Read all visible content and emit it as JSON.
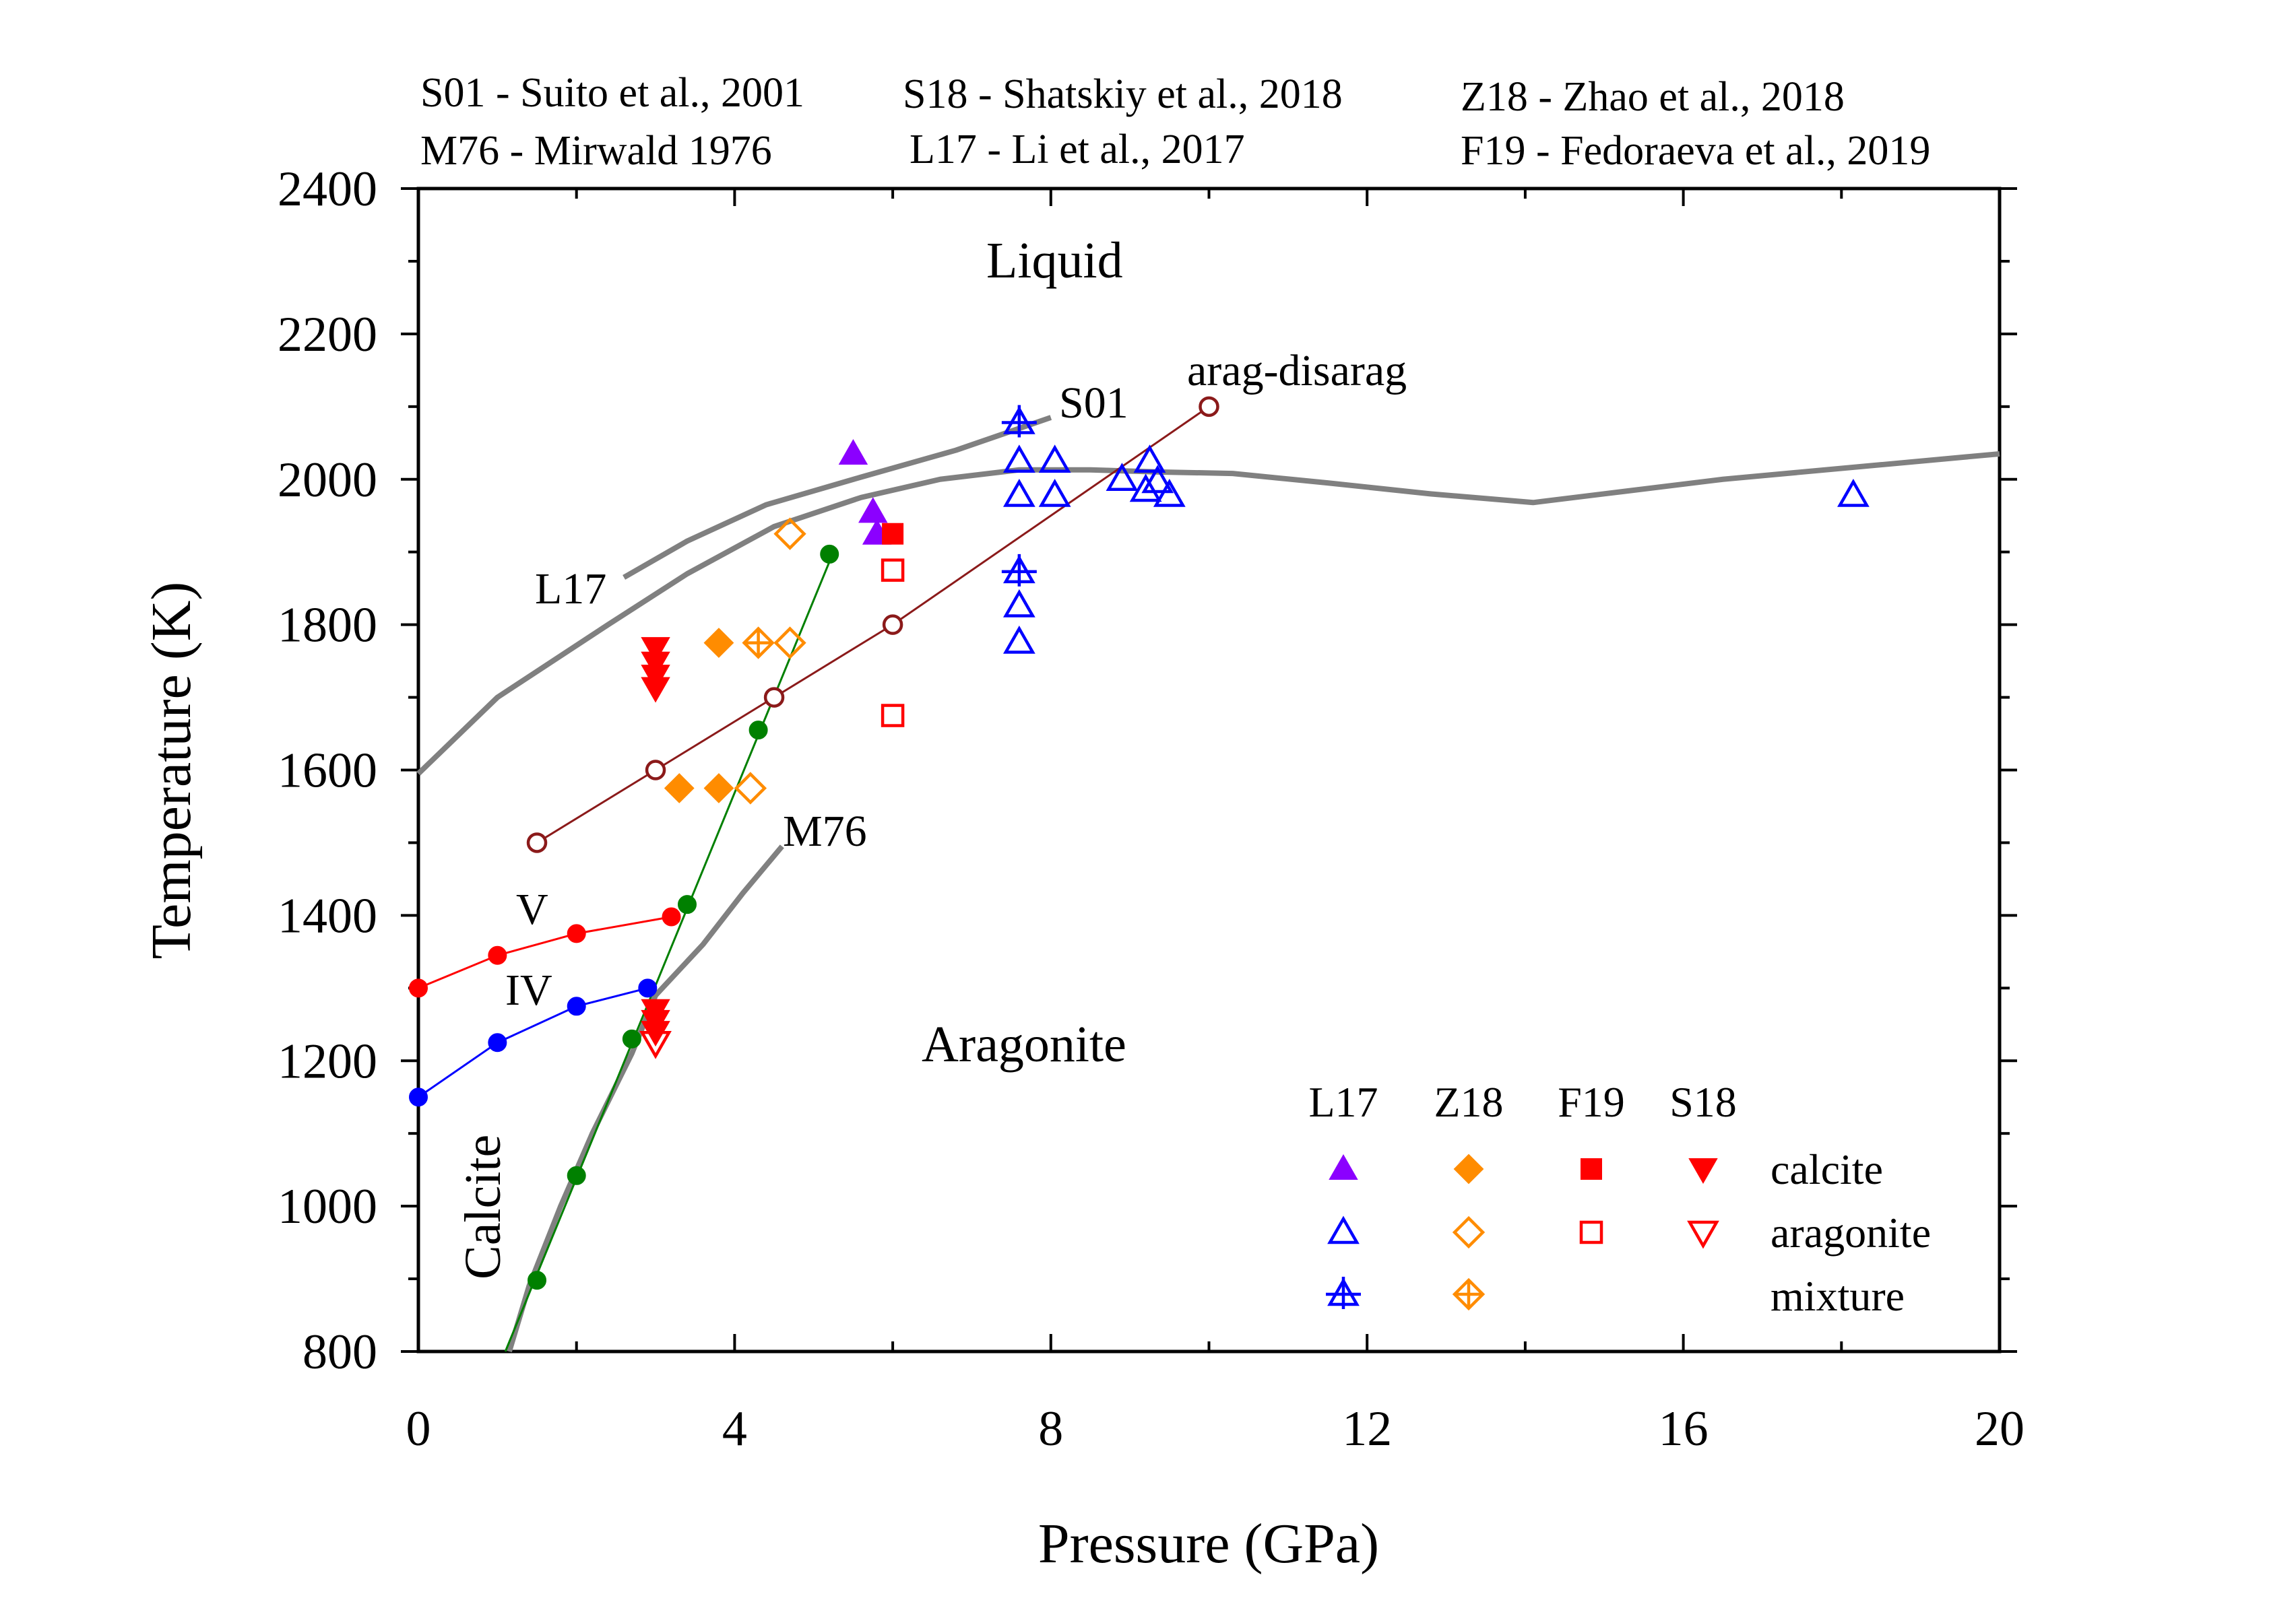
{
  "chart_data": {
    "type": "scatter",
    "xlabel": "Pressure (GPa)",
    "ylabel": "Temperature (K)",
    "xlim": [
      0,
      20
    ],
    "ylim": [
      800,
      2400
    ],
    "xticks": [
      "0",
      "4",
      "8",
      "12",
      "16",
      "20"
    ],
    "yticks": [
      "800",
      "1000",
      "1200",
      "1400",
      "1600",
      "1800",
      "2000",
      "2200",
      "2400"
    ],
    "grid": false,
    "references": [
      "S01 - Suito et al., 2001",
      "S18 - Shatskiy et al., 2018",
      "Z18 - Zhao et al., 2018",
      "M76 - Mirwald 1976",
      "L17 - Li et al., 2017",
      "F19 - Fedoraeva et al., 2019"
    ],
    "region_labels": {
      "liquid": "Liquid",
      "aragonite": "Aragonite",
      "calcite": "Calcite"
    },
    "curve_labels": {
      "s01": "S01",
      "arag_disarag": "arag-disarag",
      "l17": "L17",
      "m76": "M76",
      "v": "V",
      "iv": "IV"
    },
    "curves": [
      {
        "id": "melting-curve",
        "color": "#808080",
        "points": [
          [
            0,
            1595
          ],
          [
            1,
            1700
          ],
          [
            2.4,
            1800
          ],
          [
            3.4,
            1870
          ],
          [
            4.5,
            1935
          ],
          [
            5.6,
            1975
          ],
          [
            6.6,
            2000
          ],
          [
            7.6,
            2013
          ],
          [
            8.5,
            2013
          ],
          [
            9.4,
            2010
          ],
          [
            10.3,
            2008
          ],
          [
            11.5,
            1995
          ],
          [
            12.8,
            1980
          ],
          [
            14.1,
            1968
          ],
          [
            15,
            1980
          ],
          [
            16.5,
            2000
          ],
          [
            18.5,
            2020
          ],
          [
            20,
            2035
          ]
        ]
      },
      {
        "id": "s01-curve",
        "color": "#808080",
        "points": [
          [
            2.6,
            1865
          ],
          [
            3.4,
            1915
          ],
          [
            4.4,
            1965
          ],
          [
            5.6,
            2003
          ],
          [
            6.8,
            2040
          ],
          [
            8.0,
            2085
          ]
        ]
      },
      {
        "id": "m76-curve",
        "color": "#808080",
        "points": [
          [
            1.15,
            800
          ],
          [
            1.4,
            890
          ],
          [
            1.8,
            1000
          ],
          [
            2.2,
            1100
          ],
          [
            2.7,
            1210
          ],
          [
            3.0,
            1290
          ],
          [
            3.6,
            1360
          ],
          [
            4.1,
            1430
          ],
          [
            4.6,
            1495
          ]
        ]
      },
      {
        "id": "calcite-boundary-green",
        "color": "#008000",
        "points": [
          [
            1.1,
            800
          ],
          [
            5.25,
            1900
          ]
        ]
      }
    ],
    "series": [
      {
        "id": "arag-disarag",
        "color": "#8b1a1a",
        "marker": "open-circle",
        "line": true,
        "points": [
          [
            1.5,
            1500
          ],
          [
            3.0,
            1600
          ],
          [
            4.5,
            1700
          ],
          [
            6.0,
            1800
          ],
          [
            10.0,
            2100
          ]
        ]
      },
      {
        "id": "phase-V",
        "color": "#ff0000",
        "marker": "filled-circle",
        "line": true,
        "points": [
          [
            0,
            1300
          ],
          [
            1.0,
            1345
          ],
          [
            2.0,
            1375
          ],
          [
            3.2,
            1398
          ]
        ]
      },
      {
        "id": "phase-IV",
        "color": "#0000ff",
        "marker": "filled-circle",
        "line": true,
        "points": [
          [
            0,
            1150
          ],
          [
            1.0,
            1225
          ],
          [
            2.0,
            1275
          ],
          [
            2.9,
            1300
          ]
        ]
      },
      {
        "id": "calcite-arag-green",
        "color": "#008000",
        "marker": "filled-circle",
        "line": false,
        "points": [
          [
            1.5,
            898
          ],
          [
            2.0,
            1042
          ],
          [
            2.7,
            1230
          ],
          [
            3.4,
            1415
          ],
          [
            4.3,
            1655
          ],
          [
            5.2,
            1897
          ]
        ]
      },
      {
        "id": "L17-calcite",
        "color": "#8b00ff",
        "marker": "filled-triangle-up",
        "line": false,
        "points": [
          [
            5.5,
            2035
          ],
          [
            5.75,
            1955
          ],
          [
            5.8,
            1925
          ]
        ]
      },
      {
        "id": "L17-aragonite",
        "color": "#0000ff",
        "marker": "open-triangle-up",
        "line": false,
        "points": [
          [
            7.6,
            2025
          ],
          [
            7.6,
            1978
          ],
          [
            7.6,
            1826
          ],
          [
            7.6,
            1776
          ],
          [
            8.05,
            2025
          ],
          [
            8.05,
            1978
          ],
          [
            8.9,
            2000
          ],
          [
            9.2,
            1985
          ],
          [
            9.25,
            2025
          ],
          [
            9.35,
            1997
          ],
          [
            9.5,
            1978
          ],
          [
            18.15,
            1978
          ]
        ]
      },
      {
        "id": "L17-mixture",
        "color": "#0000ff",
        "marker": "mixture-triangle",
        "line": false,
        "points": [
          [
            7.6,
            2078
          ],
          [
            7.6,
            1873
          ]
        ]
      },
      {
        "id": "Z18-calcite",
        "color": "#ff8c00",
        "marker": "filled-diamond",
        "line": false,
        "points": [
          [
            3.8,
            1775
          ],
          [
            3.3,
            1575
          ],
          [
            3.8,
            1575
          ]
        ]
      },
      {
        "id": "Z18-aragonite",
        "color": "#ff8c00",
        "marker": "open-diamond",
        "line": false,
        "points": [
          [
            4.7,
            1925
          ],
          [
            4.7,
            1775
          ],
          [
            4.2,
            1575
          ]
        ]
      },
      {
        "id": "Z18-mixture",
        "color": "#ff8c00",
        "marker": "mixture-diamond",
        "line": false,
        "points": [
          [
            4.3,
            1775
          ]
        ]
      },
      {
        "id": "F19-calcite",
        "color": "#ff0000",
        "marker": "filled-square",
        "line": false,
        "points": [
          [
            6.0,
            1925
          ]
        ]
      },
      {
        "id": "F19-aragonite",
        "color": "#ff0000",
        "marker": "open-square",
        "line": false,
        "points": [
          [
            6.0,
            1875
          ],
          [
            6.0,
            1675
          ]
        ]
      },
      {
        "id": "S18-calcite",
        "color": "#ff0000",
        "marker": "filled-triangle-down",
        "line": false,
        "points": [
          [
            3.0,
            1768
          ],
          [
            3.0,
            1748
          ],
          [
            3.0,
            1730
          ],
          [
            3.0,
            1713
          ],
          [
            3.0,
            1270
          ],
          [
            3.0,
            1255
          ],
          [
            3.0,
            1240
          ]
        ]
      },
      {
        "id": "S18-aragonite",
        "color": "#ff0000",
        "marker": "open-triangle-down",
        "line": false,
        "points": [
          [
            3.0,
            1225
          ]
        ]
      }
    ],
    "legend": {
      "position": "bottom-right",
      "columns": [
        "L17",
        "Z18",
        "F19",
        "S18"
      ],
      "rows": [
        "calcite",
        "aragonite",
        "mixture"
      ],
      "cells": [
        [
          {
            "marker": "filled-triangle-up",
            "color": "#8b00ff"
          },
          {
            "marker": "filled-diamond",
            "color": "#ff8c00"
          },
          {
            "marker": "filled-square",
            "color": "#ff0000"
          },
          {
            "marker": "filled-triangle-down",
            "color": "#ff0000"
          }
        ],
        [
          {
            "marker": "open-triangle-up",
            "color": "#0000ff"
          },
          {
            "marker": "open-diamond",
            "color": "#ff8c00"
          },
          {
            "marker": "open-square",
            "color": "#ff0000"
          },
          {
            "marker": "open-triangle-down",
            "color": "#ff0000"
          }
        ],
        [
          {
            "marker": "mixture-triangle",
            "color": "#0000ff"
          },
          {
            "marker": "mixture-diamond",
            "color": "#ff8c00"
          },
          null,
          null
        ]
      ]
    }
  }
}
